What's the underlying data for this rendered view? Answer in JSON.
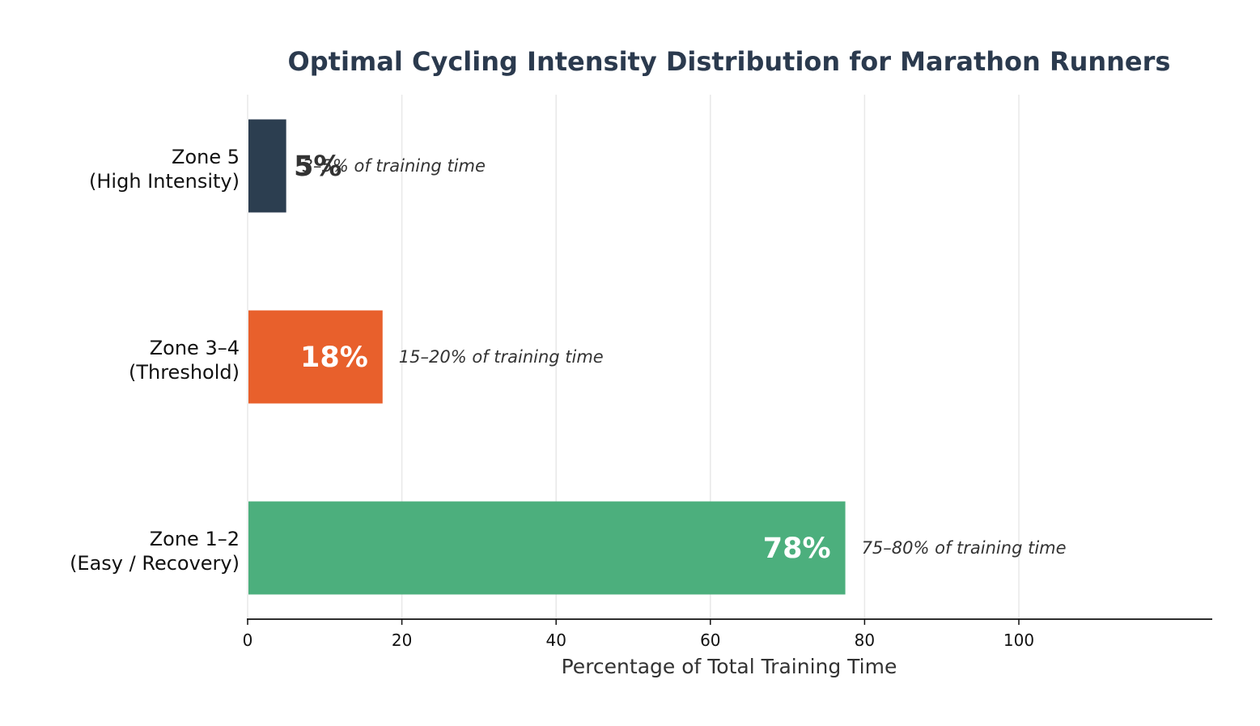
{
  "chart_data": {
    "type": "bar",
    "orientation": "horizontal",
    "title": "Optimal Cycling Intensity Distribution for Marathon Runners",
    "xlabel": "Percentage of Total Training Time",
    "ylabel": "",
    "xlim": [
      0,
      125
    ],
    "x_ticks": [
      "0",
      "20",
      "40",
      "60",
      "80",
      "100"
    ],
    "grid": "vertical",
    "categories": [
      {
        "line1": "Zone 1–2",
        "line2": "(Easy / Recovery)"
      },
      {
        "line1": "Zone 3–4",
        "line2": "(Threshold)"
      },
      {
        "line1": "Zone 5",
        "line2": "(High Intensity)"
      }
    ],
    "values": [
      77.5,
      17.5,
      5
    ],
    "value_labels": [
      "78%",
      "18%",
      "5%"
    ],
    "annotations": [
      "75–80% of training time",
      "15–20% of training time",
      "3–5% of training time"
    ],
    "colors": [
      "#4caf7d",
      "#e8602c",
      "#2c3e50"
    ],
    "value_label_colors": [
      "#ffffff",
      "#ffffff",
      "#333333"
    ]
  }
}
